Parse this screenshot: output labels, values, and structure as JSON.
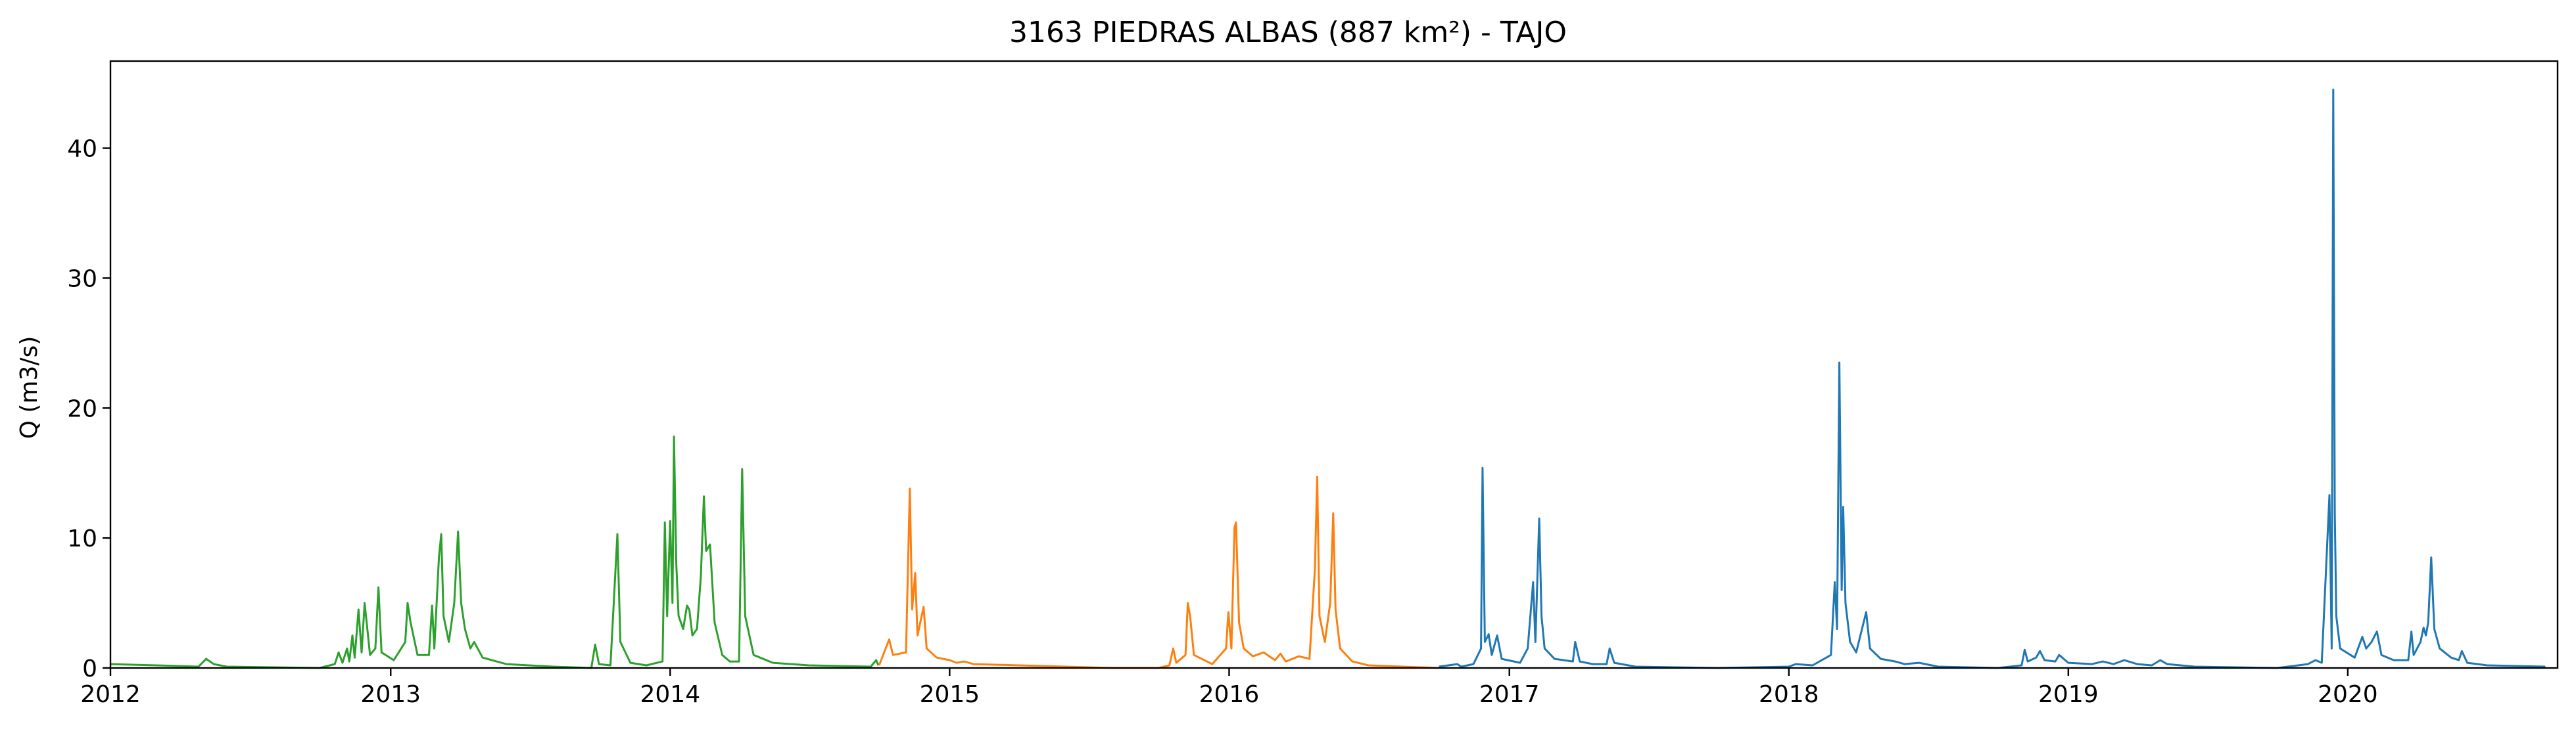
{
  "chart_data": {
    "type": "line",
    "title": "3163 PIEDRAS ALBAS (887 km²) - TAJO",
    "xlabel": "",
    "ylabel": "Q (m3/s)",
    "xlim": [
      "2012-01-01",
      "2020-10-01"
    ],
    "ylim": [
      0,
      46.7
    ],
    "x_ticks": [
      "2012",
      "2013",
      "2014",
      "2015",
      "2016",
      "2017",
      "2018",
      "2019",
      "2020"
    ],
    "y_ticks": [
      "0",
      "10",
      "20",
      "30",
      "40"
    ],
    "grid": false,
    "legend": "none",
    "series": [
      {
        "color": "#2ca02c",
        "points": [
          [
            "2012-01-01",
            0.3
          ],
          [
            "2012-03-01",
            0.2
          ],
          [
            "2012-04-25",
            0.1
          ],
          [
            "2012-05-05",
            0.7
          ],
          [
            "2012-05-15",
            0.3
          ],
          [
            "2012-06-01",
            0.1
          ],
          [
            "2012-09-30",
            0.0
          ],
          [
            "2012-10-20",
            0.3
          ],
          [
            "2012-10-25",
            1.2
          ],
          [
            "2012-10-30",
            0.4
          ],
          [
            "2012-11-05",
            1.5
          ],
          [
            "2012-11-08",
            0.5
          ],
          [
            "2012-11-12",
            2.5
          ],
          [
            "2012-11-15",
            0.8
          ],
          [
            "2012-11-20",
            4.5
          ],
          [
            "2012-11-24",
            1.2
          ],
          [
            "2012-11-28",
            5.0
          ],
          [
            "2012-12-05",
            1.0
          ],
          [
            "2012-12-12",
            1.5
          ],
          [
            "2012-12-16",
            6.2
          ],
          [
            "2012-12-20",
            1.2
          ],
          [
            "2013-01-05",
            0.6
          ],
          [
            "2013-01-20",
            2.0
          ],
          [
            "2013-01-23",
            5.0
          ],
          [
            "2013-01-27",
            3.5
          ],
          [
            "2013-02-05",
            1.0
          ],
          [
            "2013-02-20",
            1.0
          ],
          [
            "2013-02-24",
            4.8
          ],
          [
            "2013-02-27",
            1.5
          ],
          [
            "2013-03-05",
            8.5
          ],
          [
            "2013-03-08",
            10.3
          ],
          [
            "2013-03-11",
            4.0
          ],
          [
            "2013-03-18",
            2.0
          ],
          [
            "2013-03-25",
            5.0
          ],
          [
            "2013-03-30",
            10.5
          ],
          [
            "2013-04-03",
            5.0
          ],
          [
            "2013-04-08",
            3.0
          ],
          [
            "2013-04-15",
            1.5
          ],
          [
            "2013-04-20",
            2.0
          ],
          [
            "2013-05-01",
            0.8
          ],
          [
            "2013-06-01",
            0.3
          ],
          [
            "2013-08-01",
            0.1
          ],
          [
            "2013-09-20",
            0.0
          ],
          [
            "2013-09-25",
            1.8
          ],
          [
            "2013-09-30",
            0.3
          ],
          [
            "2013-10-15",
            0.2
          ],
          [
            "2013-10-24",
            10.3
          ],
          [
            "2013-10-28",
            2.0
          ],
          [
            "2013-11-10",
            0.4
          ],
          [
            "2013-12-01",
            0.2
          ],
          [
            "2013-12-22",
            0.5
          ],
          [
            "2013-12-25",
            11.2
          ],
          [
            "2013-12-28",
            4.0
          ],
          [
            "2014-01-01",
            11.3
          ],
          [
            "2014-01-04",
            5.0
          ],
          [
            "2014-01-06",
            17.8
          ],
          [
            "2014-01-09",
            8.0
          ],
          [
            "2014-01-12",
            4.0
          ],
          [
            "2014-01-18",
            3.0
          ],
          [
            "2014-01-23",
            4.8
          ],
          [
            "2014-01-26",
            4.5
          ],
          [
            "2014-01-30",
            2.5
          ],
          [
            "2014-02-05",
            3.0
          ],
          [
            "2014-02-10",
            7.0
          ],
          [
            "2014-02-14",
            13.2
          ],
          [
            "2014-02-17",
            9.0
          ],
          [
            "2014-02-22",
            9.5
          ],
          [
            "2014-02-28",
            3.5
          ],
          [
            "2014-03-10",
            1.0
          ],
          [
            "2014-03-20",
            0.5
          ],
          [
            "2014-04-01",
            0.5
          ],
          [
            "2014-04-05",
            15.3
          ],
          [
            "2014-04-09",
            4.0
          ],
          [
            "2014-04-20",
            1.0
          ],
          [
            "2014-05-15",
            0.4
          ],
          [
            "2014-07-01",
            0.2
          ],
          [
            "2014-09-20",
            0.1
          ],
          [
            "2014-09-27",
            0.6
          ],
          [
            "2014-09-30",
            0.2
          ]
        ]
      },
      {
        "color": "#ff7f0e",
        "points": [
          [
            "2014-10-01",
            0.2
          ],
          [
            "2014-10-14",
            2.2
          ],
          [
            "2014-10-19",
            1.0
          ],
          [
            "2014-11-05",
            1.2
          ],
          [
            "2014-11-10",
            13.8
          ],
          [
            "2014-11-13",
            4.5
          ],
          [
            "2014-11-17",
            7.3
          ],
          [
            "2014-11-20",
            2.5
          ],
          [
            "2014-11-28",
            4.7
          ],
          [
            "2014-12-02",
            1.5
          ],
          [
            "2014-12-15",
            0.8
          ],
          [
            "2015-01-01",
            0.6
          ],
          [
            "2015-01-10",
            0.4
          ],
          [
            "2015-01-20",
            0.5
          ],
          [
            "2015-02-01",
            0.3
          ],
          [
            "2015-04-01",
            0.2
          ],
          [
            "2015-06-01",
            0.1
          ],
          [
            "2015-08-01",
            0.0
          ],
          [
            "2015-10-01",
            0.0
          ],
          [
            "2015-10-15",
            0.2
          ],
          [
            "2015-10-20",
            1.5
          ],
          [
            "2015-10-24",
            0.4
          ],
          [
            "2015-11-05",
            1.0
          ],
          [
            "2015-11-08",
            5.0
          ],
          [
            "2015-11-11",
            4.0
          ],
          [
            "2015-11-16",
            1.0
          ],
          [
            "2015-12-10",
            0.3
          ],
          [
            "2015-12-28",
            1.5
          ],
          [
            "2015-12-31",
            4.3
          ],
          [
            "2016-01-04",
            1.5
          ],
          [
            "2016-01-08",
            10.8
          ],
          [
            "2016-01-10",
            11.2
          ],
          [
            "2016-01-14",
            3.5
          ],
          [
            "2016-01-20",
            1.5
          ],
          [
            "2016-02-01",
            0.9
          ],
          [
            "2016-02-15",
            1.2
          ],
          [
            "2016-03-01",
            0.6
          ],
          [
            "2016-03-08",
            1.1
          ],
          [
            "2016-03-15",
            0.5
          ],
          [
            "2016-04-01",
            0.9
          ],
          [
            "2016-04-15",
            0.7
          ],
          [
            "2016-04-22",
            7.6
          ],
          [
            "2016-04-25",
            14.7
          ],
          [
            "2016-04-28",
            4.0
          ],
          [
            "2016-05-05",
            2.0
          ],
          [
            "2016-05-12",
            5.0
          ],
          [
            "2016-05-16",
            11.9
          ],
          [
            "2016-05-19",
            4.5
          ],
          [
            "2016-05-25",
            1.5
          ],
          [
            "2016-06-10",
            0.5
          ],
          [
            "2016-07-01",
            0.2
          ],
          [
            "2016-09-30",
            0.0
          ]
        ]
      },
      {
        "color": "#1f77b4",
        "points": [
          [
            "2016-10-01",
            0.1
          ],
          [
            "2016-10-25",
            0.3
          ],
          [
            "2016-10-30",
            0.1
          ],
          [
            "2016-11-15",
            0.3
          ],
          [
            "2016-11-25",
            1.5
          ],
          [
            "2016-11-27",
            15.4
          ],
          [
            "2016-11-30",
            2.0
          ],
          [
            "2016-12-05",
            2.6
          ],
          [
            "2016-12-09",
            1.0
          ],
          [
            "2016-12-16",
            2.5
          ],
          [
            "2016-12-22",
            0.7
          ],
          [
            "2017-01-15",
            0.4
          ],
          [
            "2017-01-25",
            1.5
          ],
          [
            "2017-02-01",
            6.6
          ],
          [
            "2017-02-04",
            2.0
          ],
          [
            "2017-02-09",
            11.5
          ],
          [
            "2017-02-12",
            4.0
          ],
          [
            "2017-02-16",
            1.5
          ],
          [
            "2017-03-01",
            0.7
          ],
          [
            "2017-03-25",
            0.5
          ],
          [
            "2017-03-28",
            2.0
          ],
          [
            "2017-04-03",
            0.5
          ],
          [
            "2017-04-20",
            0.3
          ],
          [
            "2017-05-08",
            0.3
          ],
          [
            "2017-05-12",
            1.5
          ],
          [
            "2017-05-18",
            0.4
          ],
          [
            "2017-06-15",
            0.1
          ],
          [
            "2017-09-30",
            0.0
          ],
          [
            "2017-10-01",
            0.0
          ],
          [
            "2018-01-01",
            0.1
          ],
          [
            "2018-01-10",
            0.3
          ],
          [
            "2018-02-01",
            0.2
          ],
          [
            "2018-02-25",
            1.0
          ],
          [
            "2018-03-02",
            6.6
          ],
          [
            "2018-03-05",
            3.0
          ],
          [
            "2018-03-08",
            23.5
          ],
          [
            "2018-03-11",
            6.0
          ],
          [
            "2018-03-13",
            12.4
          ],
          [
            "2018-03-16",
            5.0
          ],
          [
            "2018-03-22",
            2.0
          ],
          [
            "2018-03-30",
            1.2
          ],
          [
            "2018-04-12",
            4.3
          ],
          [
            "2018-04-17",
            1.5
          ],
          [
            "2018-05-01",
            0.7
          ],
          [
            "2018-05-20",
            0.5
          ],
          [
            "2018-06-01",
            0.3
          ],
          [
            "2018-06-20",
            0.4
          ],
          [
            "2018-07-15",
            0.1
          ],
          [
            "2018-09-30",
            0.0
          ],
          [
            "2018-10-01",
            0.0
          ],
          [
            "2018-11-01",
            0.2
          ],
          [
            "2018-11-05",
            1.4
          ],
          [
            "2018-11-09",
            0.5
          ],
          [
            "2018-11-20",
            0.8
          ],
          [
            "2018-11-25",
            1.3
          ],
          [
            "2018-12-01",
            0.6
          ],
          [
            "2018-12-15",
            0.5
          ],
          [
            "2018-12-20",
            1.0
          ],
          [
            "2019-01-01",
            0.4
          ],
          [
            "2019-02-01",
            0.3
          ],
          [
            "2019-02-15",
            0.5
          ],
          [
            "2019-03-01",
            0.3
          ],
          [
            "2019-03-15",
            0.6
          ],
          [
            "2019-04-01",
            0.3
          ],
          [
            "2019-04-20",
            0.2
          ],
          [
            "2019-05-01",
            0.6
          ],
          [
            "2019-05-10",
            0.3
          ],
          [
            "2019-06-15",
            0.1
          ],
          [
            "2019-09-30",
            0.0
          ],
          [
            "2019-10-01",
            0.0
          ],
          [
            "2019-11-10",
            0.3
          ],
          [
            "2019-11-20",
            0.6
          ],
          [
            "2019-11-28",
            0.4
          ],
          [
            "2019-12-08",
            13.3
          ],
          [
            "2019-12-11",
            1.5
          ],
          [
            "2019-12-13",
            44.5
          ],
          [
            "2019-12-15",
            12.0
          ],
          [
            "2019-12-17",
            4.0
          ],
          [
            "2019-12-22",
            1.5
          ],
          [
            "2020-01-10",
            0.8
          ],
          [
            "2020-01-20",
            2.4
          ],
          [
            "2020-01-25",
            1.5
          ],
          [
            "2020-02-01",
            2.0
          ],
          [
            "2020-02-08",
            2.8
          ],
          [
            "2020-02-14",
            1.0
          ],
          [
            "2020-03-01",
            0.6
          ],
          [
            "2020-03-20",
            0.6
          ],
          [
            "2020-03-24",
            2.8
          ],
          [
            "2020-03-27",
            1.0
          ],
          [
            "2020-04-05",
            2.0
          ],
          [
            "2020-04-09",
            3.1
          ],
          [
            "2020-04-12",
            2.5
          ],
          [
            "2020-04-15",
            3.5
          ],
          [
            "2020-04-19",
            8.5
          ],
          [
            "2020-04-23",
            3.0
          ],
          [
            "2020-04-30",
            1.5
          ],
          [
            "2020-05-15",
            0.8
          ],
          [
            "2020-05-25",
            0.6
          ],
          [
            "2020-05-29",
            1.3
          ],
          [
            "2020-06-05",
            0.4
          ],
          [
            "2020-07-01",
            0.2
          ],
          [
            "2020-09-15",
            0.1
          ]
        ]
      }
    ]
  }
}
